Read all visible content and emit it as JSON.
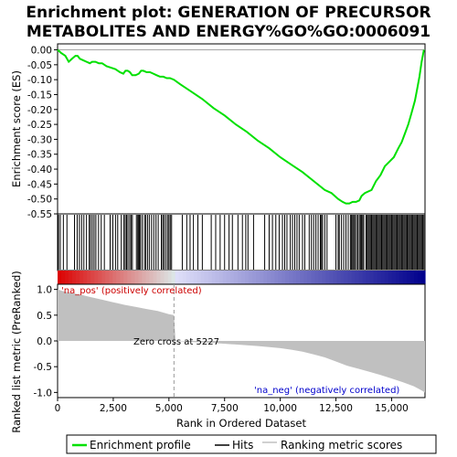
{
  "chart_data": [
    {
      "type": "line",
      "title": "Enrichment plot: GENERATION OF PRECURSOR METABOLITES AND ENERGY%GO%GO:0006091",
      "title_lines": [
        "Enrichment plot: GENERATION OF PRECURSOR",
        "METABOLITES AND ENERGY%GO%GO:0006091"
      ],
      "ylabel": "Enrichment score (ES)",
      "ylim": [
        -0.55,
        0.02
      ],
      "xlim": [
        0,
        16500
      ],
      "yticks": [
        "0.00",
        "-0.05",
        "-0.10",
        "-0.15",
        "-0.20",
        "-0.25",
        "-0.30",
        "-0.35",
        "-0.40",
        "-0.45",
        "-0.50",
        "-0.55"
      ],
      "ytick_values": [
        0.0,
        -0.05,
        -0.1,
        -0.15,
        -0.2,
        -0.25,
        -0.3,
        -0.35,
        -0.4,
        -0.45,
        -0.5,
        -0.55
      ],
      "series": [
        {
          "name": "Enrichment profile",
          "color": "#00e000",
          "x": [
            0,
            150,
            350,
            500,
            650,
            800,
            900,
            1000,
            1150,
            1300,
            1450,
            1550,
            1700,
            1850,
            2000,
            2200,
            2400,
            2600,
            2800,
            2950,
            3050,
            3150,
            3250,
            3350,
            3500,
            3650,
            3750,
            3850,
            4000,
            4150,
            4300,
            4450,
            4600,
            4750,
            4900,
            5050,
            5227,
            5500,
            6000,
            6500,
            7000,
            7500,
            8000,
            8500,
            9000,
            9500,
            10000,
            10500,
            11000,
            11500,
            12000,
            12300,
            12600,
            12800,
            12950,
            13100,
            13250,
            13400,
            13550,
            13650,
            13800,
            13950,
            14100,
            14300,
            14500,
            14700,
            14900,
            15100,
            15300,
            15450,
            15600,
            15750,
            15900,
            16050,
            16150,
            16250,
            16350,
            16450
          ],
          "y": [
            0.0,
            -0.01,
            -0.02,
            -0.04,
            -0.03,
            -0.02,
            -0.02,
            -0.03,
            -0.035,
            -0.04,
            -0.045,
            -0.04,
            -0.04,
            -0.045,
            -0.045,
            -0.055,
            -0.06,
            -0.065,
            -0.075,
            -0.08,
            -0.07,
            -0.07,
            -0.075,
            -0.085,
            -0.085,
            -0.08,
            -0.07,
            -0.07,
            -0.075,
            -0.075,
            -0.08,
            -0.085,
            -0.09,
            -0.09,
            -0.095,
            -0.095,
            -0.1,
            -0.115,
            -0.14,
            -0.165,
            -0.195,
            -0.22,
            -0.25,
            -0.275,
            -0.305,
            -0.33,
            -0.36,
            -0.385,
            -0.41,
            -0.44,
            -0.47,
            -0.48,
            -0.5,
            -0.51,
            -0.515,
            -0.515,
            -0.51,
            -0.51,
            -0.505,
            -0.49,
            -0.48,
            -0.475,
            -0.47,
            -0.44,
            -0.42,
            -0.39,
            -0.375,
            -0.36,
            -0.33,
            -0.31,
            -0.28,
            -0.25,
            -0.21,
            -0.17,
            -0.13,
            -0.09,
            -0.04,
            0.0
          ]
        }
      ]
    },
    {
      "type": "heatmap",
      "name": "Hits",
      "hit_positions": [
        40,
        120,
        260,
        420,
        760,
        880,
        980,
        1080,
        1180,
        1300,
        1420,
        1480,
        1560,
        1640,
        1720,
        1840,
        1960,
        2100,
        2360,
        2480,
        2600,
        2700,
        2860,
        2980,
        3040,
        3100,
        3160,
        3240,
        3300,
        3360,
        3540,
        3600,
        3640,
        3680,
        3720,
        3800,
        3900,
        3960,
        4040,
        4120,
        4220,
        4320,
        4420,
        4520,
        4660,
        4720,
        4780,
        4860,
        4940,
        5000,
        5060,
        5120,
        5600,
        5800,
        5950,
        6100,
        6300,
        6500,
        6900,
        7100,
        7300,
        7500,
        7700,
        7850,
        8100,
        8300,
        8450,
        8550,
        8800,
        9300,
        9500,
        9650,
        9800,
        9950,
        10100,
        10200,
        10300,
        10450,
        10550,
        10650,
        10750,
        10850,
        11000,
        11100,
        11300,
        11400,
        11500,
        11600,
        11700,
        11800,
        11850,
        11900,
        12000,
        12100,
        12500,
        12600,
        12650,
        12750,
        12850,
        12950,
        13050,
        13150,
        13200,
        13250,
        13300,
        13350,
        13420,
        13480,
        13550,
        13600,
        13650,
        13700,
        13750,
        13850,
        13900,
        13950,
        14000,
        14050,
        14100,
        14150,
        14200,
        14250,
        14300,
        14350,
        14400,
        14450,
        14500,
        14550,
        14600,
        14650,
        14700,
        14750,
        14800,
        14850,
        14900,
        14950,
        15000,
        15050,
        15100,
        15150,
        15200,
        15250,
        15300,
        15350,
        15400,
        15450,
        15500,
        15550,
        15600,
        15650,
        15700,
        15750,
        15800,
        15850,
        15900,
        15950,
        16000,
        16050,
        16100,
        16150,
        16200,
        16250,
        16300,
        16350,
        16400,
        16450
      ]
    },
    {
      "type": "area",
      "ylabel": "Ranked list metric (PreRanked)",
      "xlabel": "Rank in Ordered Dataset",
      "ylim": [
        -1.1,
        1.1
      ],
      "yticks": [
        "1.0",
        "0.5",
        "0.0",
        "-0.5",
        "-1.0"
      ],
      "ytick_values": [
        1.0,
        0.5,
        0.0,
        -0.5,
        -1.0
      ],
      "xticks": [
        "0",
        "2,500",
        "5,000",
        "7,500",
        "10,000",
        "12,500",
        "15,000"
      ],
      "xtick_values": [
        0,
        2500,
        5000,
        7500,
        10000,
        12500,
        15000
      ],
      "series": [
        {
          "name": "Ranking metric scores",
          "color": "#c0c0c0",
          "x": [
            0,
            200,
            500,
            1000,
            1500,
            2000,
            2500,
            3000,
            3500,
            4000,
            4500,
            5000,
            5227,
            5300,
            6000,
            7000,
            8000,
            9000,
            10000,
            10500,
            11000,
            11500,
            12000,
            12500,
            13000,
            13500,
            14000,
            14500,
            15000,
            15500,
            16000,
            16300,
            16500
          ],
          "y": [
            1.0,
            0.97,
            0.94,
            0.9,
            0.85,
            0.8,
            0.75,
            0.7,
            0.66,
            0.62,
            0.58,
            0.52,
            0.5,
            0.0,
            -0.02,
            -0.04,
            -0.07,
            -0.1,
            -0.14,
            -0.17,
            -0.21,
            -0.26,
            -0.32,
            -0.4,
            -0.48,
            -0.54,
            -0.6,
            -0.66,
            -0.73,
            -0.8,
            -0.88,
            -0.95,
            -1.0
          ]
        }
      ],
      "annotations": {
        "zero_cross": "Zero cross at 5227",
        "zero_cross_x": 5227,
        "pos_label": "'na_pos' (positively correlated)",
        "neg_label": "'na_neg' (negatively correlated)",
        "pos_color": "#cc0000",
        "neg_color": "#0000cc"
      }
    }
  ],
  "legend": {
    "items": [
      {
        "label": "Enrichment profile",
        "color": "#00e000"
      },
      {
        "label": "Hits",
        "color": "#000000"
      },
      {
        "label": "Ranking metric scores",
        "color": "#c0c0c0"
      }
    ]
  }
}
